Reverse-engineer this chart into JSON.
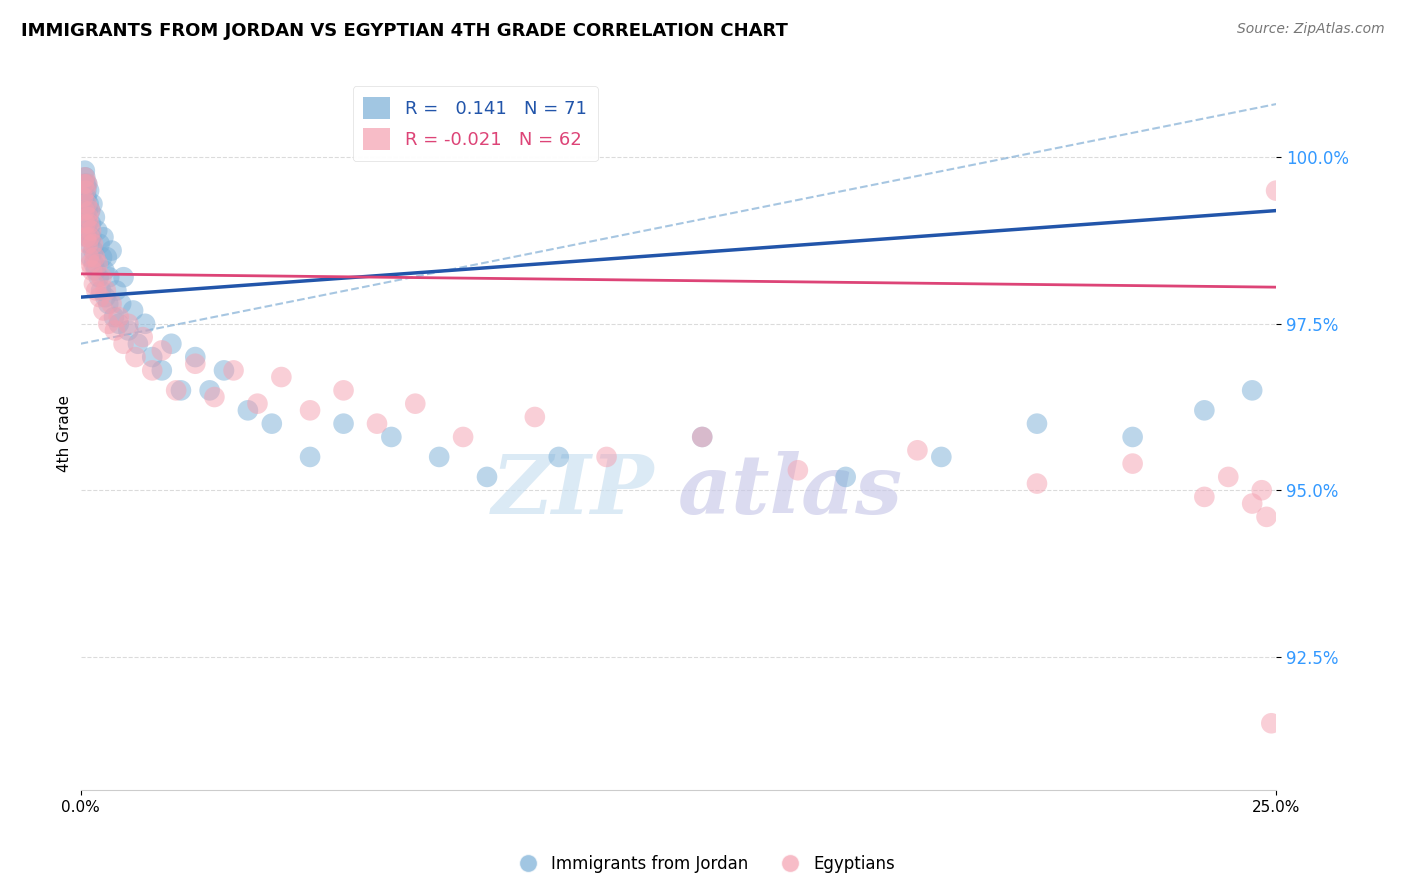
{
  "title": "IMMIGRANTS FROM JORDAN VS EGYPTIAN 4TH GRADE CORRELATION CHART",
  "source": "Source: ZipAtlas.com",
  "ylabel": "4th Grade",
  "xlim": [
    0.0,
    25.0
  ],
  "ylim": [
    90.5,
    101.2
  ],
  "jordan_R": 0.141,
  "jordan_N": 71,
  "egyptian_R": -0.021,
  "egyptian_N": 62,
  "jordan_color": "#7aaed6",
  "egyptian_color": "#f4a0b0",
  "jordan_line_color": "#2255aa",
  "egyptian_line_color": "#dd4477",
  "dashed_line_color": "#8ab4d8",
  "ytick_color": "#3399ff",
  "jordan_x": [
    0.05,
    0.07,
    0.08,
    0.09,
    0.1,
    0.1,
    0.11,
    0.11,
    0.12,
    0.12,
    0.13,
    0.13,
    0.14,
    0.15,
    0.15,
    0.16,
    0.17,
    0.18,
    0.19,
    0.2,
    0.21,
    0.22,
    0.23,
    0.25,
    0.27,
    0.28,
    0.3,
    0.32,
    0.35,
    0.38,
    0.4,
    0.43,
    0.45,
    0.48,
    0.5,
    0.52,
    0.55,
    0.58,
    0.6,
    0.65,
    0.7,
    0.75,
    0.8,
    0.85,
    0.9,
    1.0,
    1.1,
    1.2,
    1.35,
    1.5,
    1.7,
    1.9,
    2.1,
    2.4,
    2.7,
    3.0,
    3.5,
    4.0,
    4.8,
    5.5,
    6.5,
    7.5,
    8.5,
    10.0,
    13.0,
    16.0,
    18.0,
    20.0,
    22.0,
    23.5,
    24.5
  ],
  "jordan_y": [
    99.5,
    99.6,
    99.3,
    99.8,
    99.4,
    99.7,
    99.2,
    99.6,
    99.5,
    99.1,
    98.9,
    99.4,
    99.6,
    99.2,
    99.0,
    98.8,
    99.3,
    99.5,
    98.7,
    99.2,
    98.5,
    99.0,
    98.8,
    99.3,
    98.6,
    98.4,
    99.1,
    98.3,
    98.9,
    98.2,
    98.7,
    98.0,
    98.5,
    98.8,
    98.3,
    97.9,
    98.5,
    97.8,
    98.2,
    98.6,
    97.6,
    98.0,
    97.5,
    97.8,
    98.2,
    97.4,
    97.7,
    97.2,
    97.5,
    97.0,
    96.8,
    97.2,
    96.5,
    97.0,
    96.5,
    96.8,
    96.2,
    96.0,
    95.5,
    96.0,
    95.8,
    95.5,
    95.2,
    95.5,
    95.8,
    95.2,
    95.5,
    96.0,
    95.8,
    96.2,
    96.5
  ],
  "egyptian_x": [
    0.05,
    0.07,
    0.08,
    0.09,
    0.1,
    0.11,
    0.12,
    0.13,
    0.14,
    0.15,
    0.16,
    0.17,
    0.18,
    0.19,
    0.2,
    0.21,
    0.22,
    0.24,
    0.26,
    0.28,
    0.3,
    0.33,
    0.36,
    0.4,
    0.44,
    0.48,
    0.53,
    0.58,
    0.65,
    0.72,
    0.8,
    0.9,
    1.0,
    1.15,
    1.3,
    1.5,
    1.7,
    2.0,
    2.4,
    2.8,
    3.2,
    3.7,
    4.2,
    4.8,
    5.5,
    6.2,
    7.0,
    8.0,
    9.5,
    11.0,
    13.0,
    15.0,
    17.5,
    20.0,
    22.0,
    23.5,
    24.0,
    24.5,
    24.7,
    24.8,
    24.9,
    25.0
  ],
  "egyptian_y": [
    99.4,
    99.6,
    99.2,
    99.7,
    99.0,
    99.5,
    98.8,
    99.3,
    99.6,
    98.7,
    99.1,
    98.5,
    99.0,
    98.8,
    99.2,
    98.4,
    98.9,
    98.3,
    98.7,
    98.1,
    98.5,
    98.0,
    98.4,
    97.9,
    98.2,
    97.7,
    98.0,
    97.5,
    97.8,
    97.4,
    97.6,
    97.2,
    97.5,
    97.0,
    97.3,
    96.8,
    97.1,
    96.5,
    96.9,
    96.4,
    96.8,
    96.3,
    96.7,
    96.2,
    96.5,
    96.0,
    96.3,
    95.8,
    96.1,
    95.5,
    95.8,
    95.3,
    95.6,
    95.1,
    95.4,
    94.9,
    95.2,
    94.8,
    95.0,
    94.6,
    91.5,
    99.5
  ],
  "watermark_zip": "ZIP",
  "watermark_atlas": "atlas",
  "background_color": "#ffffff",
  "grid_color": "#cccccc"
}
